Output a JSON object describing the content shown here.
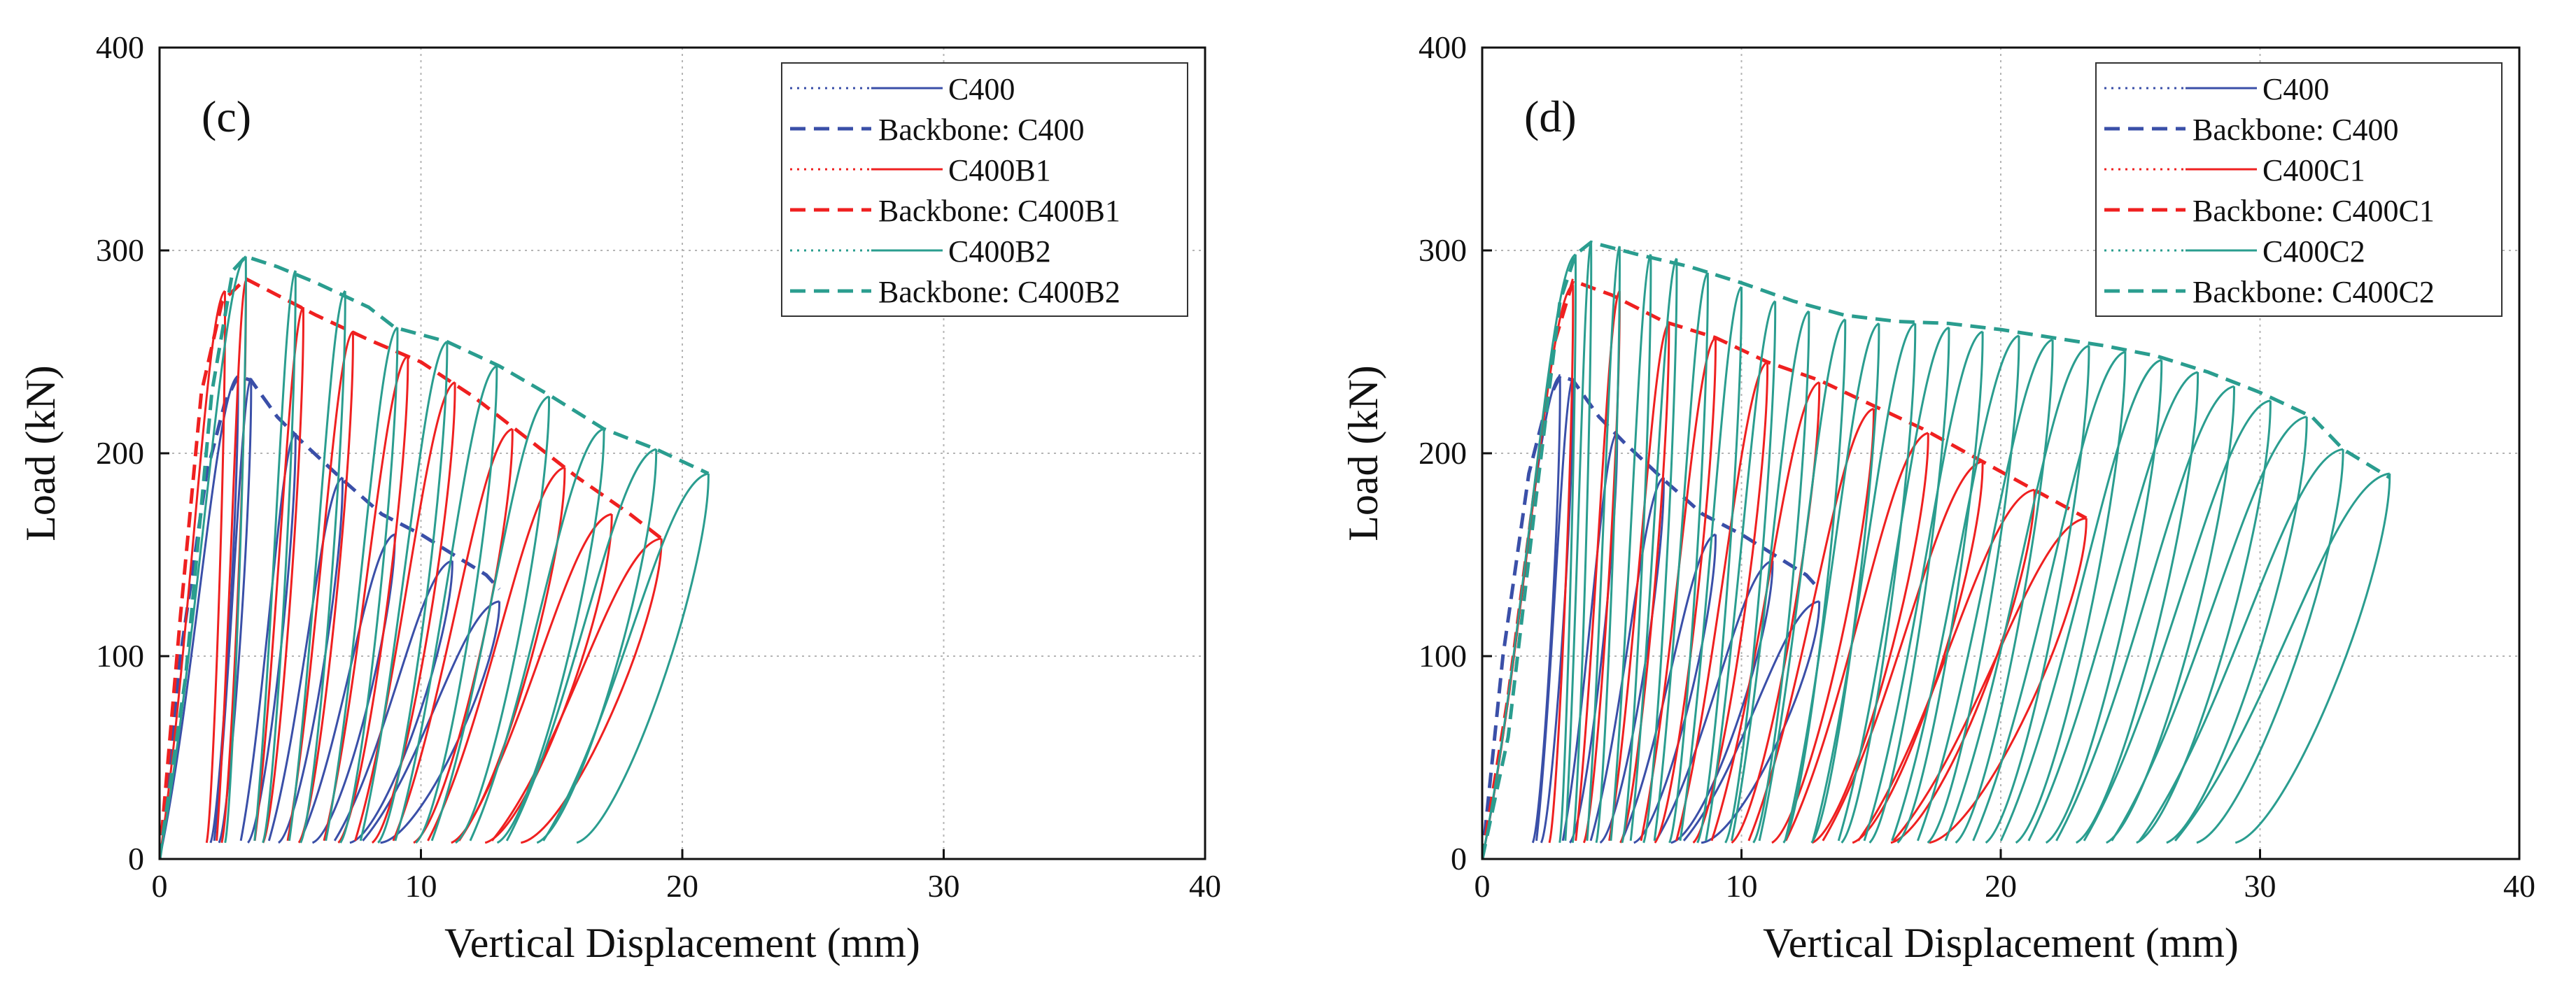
{
  "colors": {
    "C400": "#3a4fa8",
    "B1": "#ef2020",
    "B2": "#2a9d8f",
    "grid": "#b5b5b5",
    "axis": "#111111"
  },
  "chart_data": [
    {
      "type": "line",
      "panel_label": "(c)",
      "xlabel": "Vertical Displacement (mm)",
      "ylabel": "Load (kN)",
      "xlim": [
        0,
        40
      ],
      "ylim": [
        0,
        400
      ],
      "xticks": [
        "0",
        "10",
        "20",
        "30",
        "40"
      ],
      "yticks": [
        "0",
        "100",
        "200",
        "300",
        "400"
      ],
      "grid": true,
      "legend_position": "top-right",
      "legend": [
        "C400",
        "Backbone: C400",
        "C400B1",
        "Backbone: C400B1",
        "C400B2",
        "Backbone: C400B2"
      ],
      "series": [
        {
          "name": "C400",
          "color_key": "C400",
          "kind": "cyclic",
          "peaks_x": [
            3.0,
            3.5,
            5.2,
            7.0,
            9.0,
            11.2,
            13.0
          ],
          "peaks_y": [
            238,
            237,
            210,
            188,
            160,
            147,
            127
          ],
          "residual": 0.65
        },
        {
          "name": "Backbone: C400",
          "color_key": "C400",
          "kind": "backbone",
          "x": [
            0,
            0.8,
            1.8,
            2.5,
            3.0,
            3.5,
            4.5,
            5.5,
            7.0,
            8.5,
            10.0,
            11.5,
            12.5,
            13.0
          ],
          "y": [
            0,
            100,
            190,
            225,
            238,
            236,
            218,
            205,
            187,
            170,
            160,
            148,
            140,
            133
          ]
        },
        {
          "name": "C400B1",
          "color_key": "B1",
          "kind": "cyclic",
          "peaks_x": [
            2.5,
            3.3,
            5.5,
            7.4,
            9.5,
            11.3,
            13.5,
            15.5,
            17.3,
            19.2
          ],
          "peaks_y": [
            280,
            285,
            272,
            260,
            248,
            235,
            212,
            193,
            170,
            158
          ],
          "residual": 0.72
        },
        {
          "name": "Backbone: C400B1",
          "color_key": "B1",
          "kind": "backbone",
          "x": [
            0,
            0.8,
            1.6,
            2.4,
            3.3,
            4.5,
            6.0,
            8.0,
            10.0,
            12.0,
            14.0,
            16.0,
            18.0,
            19.2
          ],
          "y": [
            0,
            120,
            230,
            275,
            286,
            278,
            268,
            256,
            245,
            228,
            208,
            188,
            170,
            158
          ]
        },
        {
          "name": "C400B2",
          "color_key": "B2",
          "kind": "cyclic",
          "peaks_x": [
            3.3,
            5.2,
            7.1,
            9.1,
            11.0,
            12.9,
            14.9,
            17.0,
            19.0,
            21.0
          ],
          "peaks_y": [
            297,
            290,
            280,
            262,
            255,
            243,
            228,
            212,
            202,
            190
          ],
          "residual": 0.76
        },
        {
          "name": "Backbone: C400B2",
          "color_key": "B2",
          "kind": "backbone",
          "x": [
            0,
            1.0,
            2.0,
            2.8,
            3.3,
            4.5,
            6.0,
            8.0,
            9.0,
            11.0,
            13.0,
            15.0,
            17.0,
            19.0,
            21.0
          ],
          "y": [
            0,
            90,
            230,
            290,
            297,
            292,
            284,
            272,
            262,
            255,
            243,
            228,
            212,
            202,
            190
          ]
        }
      ]
    },
    {
      "type": "line",
      "panel_label": "(d)",
      "xlabel": "Vertical Displacement (mm)",
      "ylabel": "Load (kN)",
      "xlim": [
        0,
        40
      ],
      "ylim": [
        0,
        400
      ],
      "xticks": [
        "0",
        "10",
        "20",
        "30",
        "40"
      ],
      "yticks": [
        "0",
        "100",
        "200",
        "300",
        "400"
      ],
      "grid": true,
      "legend_position": "top-right",
      "legend": [
        "C400",
        "Backbone: C400",
        "C400C1",
        "Backbone: C400C1",
        "C400C2",
        "Backbone: C400C2"
      ],
      "series": [
        {
          "name": "C400",
          "color_key": "C400",
          "kind": "cyclic",
          "peaks_x": [
            3.0,
            3.5,
            5.2,
            7.0,
            9.0,
            11.2,
            13.0
          ],
          "peaks_y": [
            238,
            237,
            210,
            188,
            160,
            147,
            127
          ],
          "residual": 0.65
        },
        {
          "name": "Backbone: C400",
          "color_key": "C400",
          "kind": "backbone",
          "x": [
            0,
            0.8,
            1.8,
            2.5,
            3.0,
            3.5,
            4.5,
            5.5,
            7.0,
            8.5,
            10.0,
            11.5,
            12.5,
            13.0
          ],
          "y": [
            0,
            100,
            190,
            225,
            238,
            236,
            218,
            205,
            187,
            170,
            160,
            148,
            140,
            133
          ]
        },
        {
          "name": "C400C1",
          "color_key": "B1",
          "kind": "cyclic",
          "peaks_x": [
            3.5,
            5.3,
            7.2,
            9.0,
            11.0,
            13.0,
            15.1,
            17.2,
            19.3,
            21.3,
            23.3
          ],
          "peaks_y": [
            283,
            280,
            264,
            257,
            245,
            235,
            222,
            210,
            196,
            182,
            168
          ],
          "residual": 0.74
        },
        {
          "name": "Backbone: C400C1",
          "color_key": "B1",
          "kind": "backbone",
          "x": [
            0,
            1.0,
            2.0,
            2.8,
            3.5,
            5.0,
            7.0,
            9.0,
            11.0,
            13.0,
            15.0,
            17.0,
            19.0,
            21.0,
            23.3
          ],
          "y": [
            0,
            80,
            180,
            255,
            285,
            278,
            265,
            257,
            245,
            236,
            224,
            212,
            198,
            184,
            168
          ]
        },
        {
          "name": "C400C2",
          "color_key": "B2",
          "kind": "cyclic",
          "peaks_x": [
            3.6,
            4.2,
            5.3,
            6.5,
            7.5,
            8.7,
            10.0,
            11.3,
            12.6,
            14.0,
            15.3,
            16.7,
            18.0,
            19.3,
            20.7,
            22.0,
            23.4,
            24.8,
            26.2,
            27.6,
            29.0,
            30.4,
            31.8,
            33.2,
            35.0
          ],
          "peaks_y": [
            298,
            304,
            302,
            298,
            296,
            289,
            282,
            275,
            270,
            266,
            264,
            264,
            262,
            260,
            258,
            256,
            253,
            250,
            246,
            240,
            233,
            226,
            218,
            202,
            190
          ],
          "residual": 0.83
        },
        {
          "name": "Backbone: C400C2",
          "color_key": "B2",
          "kind": "backbone",
          "x": [
            0,
            1.0,
            2.0,
            3.0,
            3.6,
            4.2,
            6.0,
            8.0,
            10.0,
            12.0,
            14.0,
            16.0,
            18.0,
            20.0,
            22.0,
            24.0,
            26.0,
            28.0,
            30.0,
            32.0,
            33.2,
            35.0
          ],
          "y": [
            0,
            60,
            170,
            275,
            298,
            304,
            298,
            292,
            284,
            275,
            268,
            265,
            264,
            261,
            257,
            253,
            248,
            240,
            230,
            218,
            202,
            188
          ]
        }
      ]
    }
  ]
}
